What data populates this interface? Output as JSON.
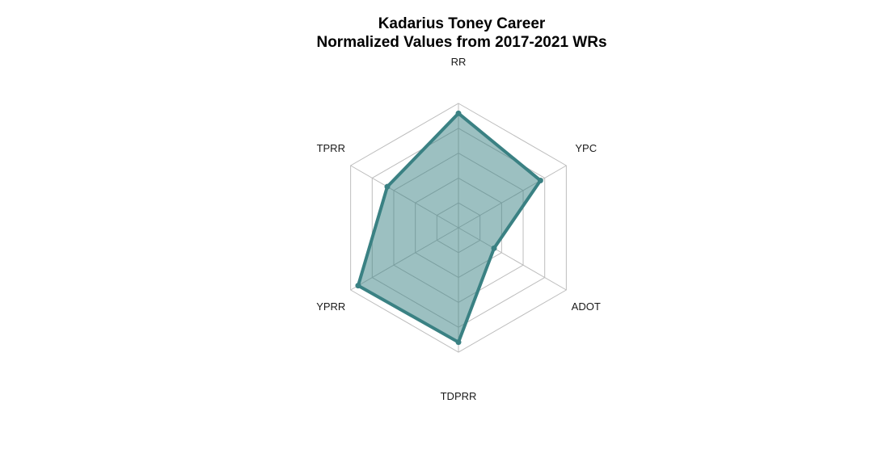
{
  "chart_data": {
    "type": "radar",
    "title": "Kadarius Toney Career",
    "subtitle": "Normalized Values from 2017-2021 WRs",
    "axes": [
      "RR",
      "YPC",
      "ADOT",
      "TDPRR",
      "YPRR",
      "TPRR"
    ],
    "range": [
      0,
      1
    ],
    "grid_levels": [
      0.2,
      0.4,
      0.6,
      0.8,
      1.0
    ],
    "series": [
      {
        "values": [
          0.92,
          0.76,
          0.33,
          0.92,
          0.93,
          0.66
        ]
      }
    ],
    "colors": {
      "line": "#3a8183",
      "fill": "#3a8183",
      "fill_opacity": 0.5,
      "grid": "#bdbdbd"
    },
    "legend": false
  }
}
